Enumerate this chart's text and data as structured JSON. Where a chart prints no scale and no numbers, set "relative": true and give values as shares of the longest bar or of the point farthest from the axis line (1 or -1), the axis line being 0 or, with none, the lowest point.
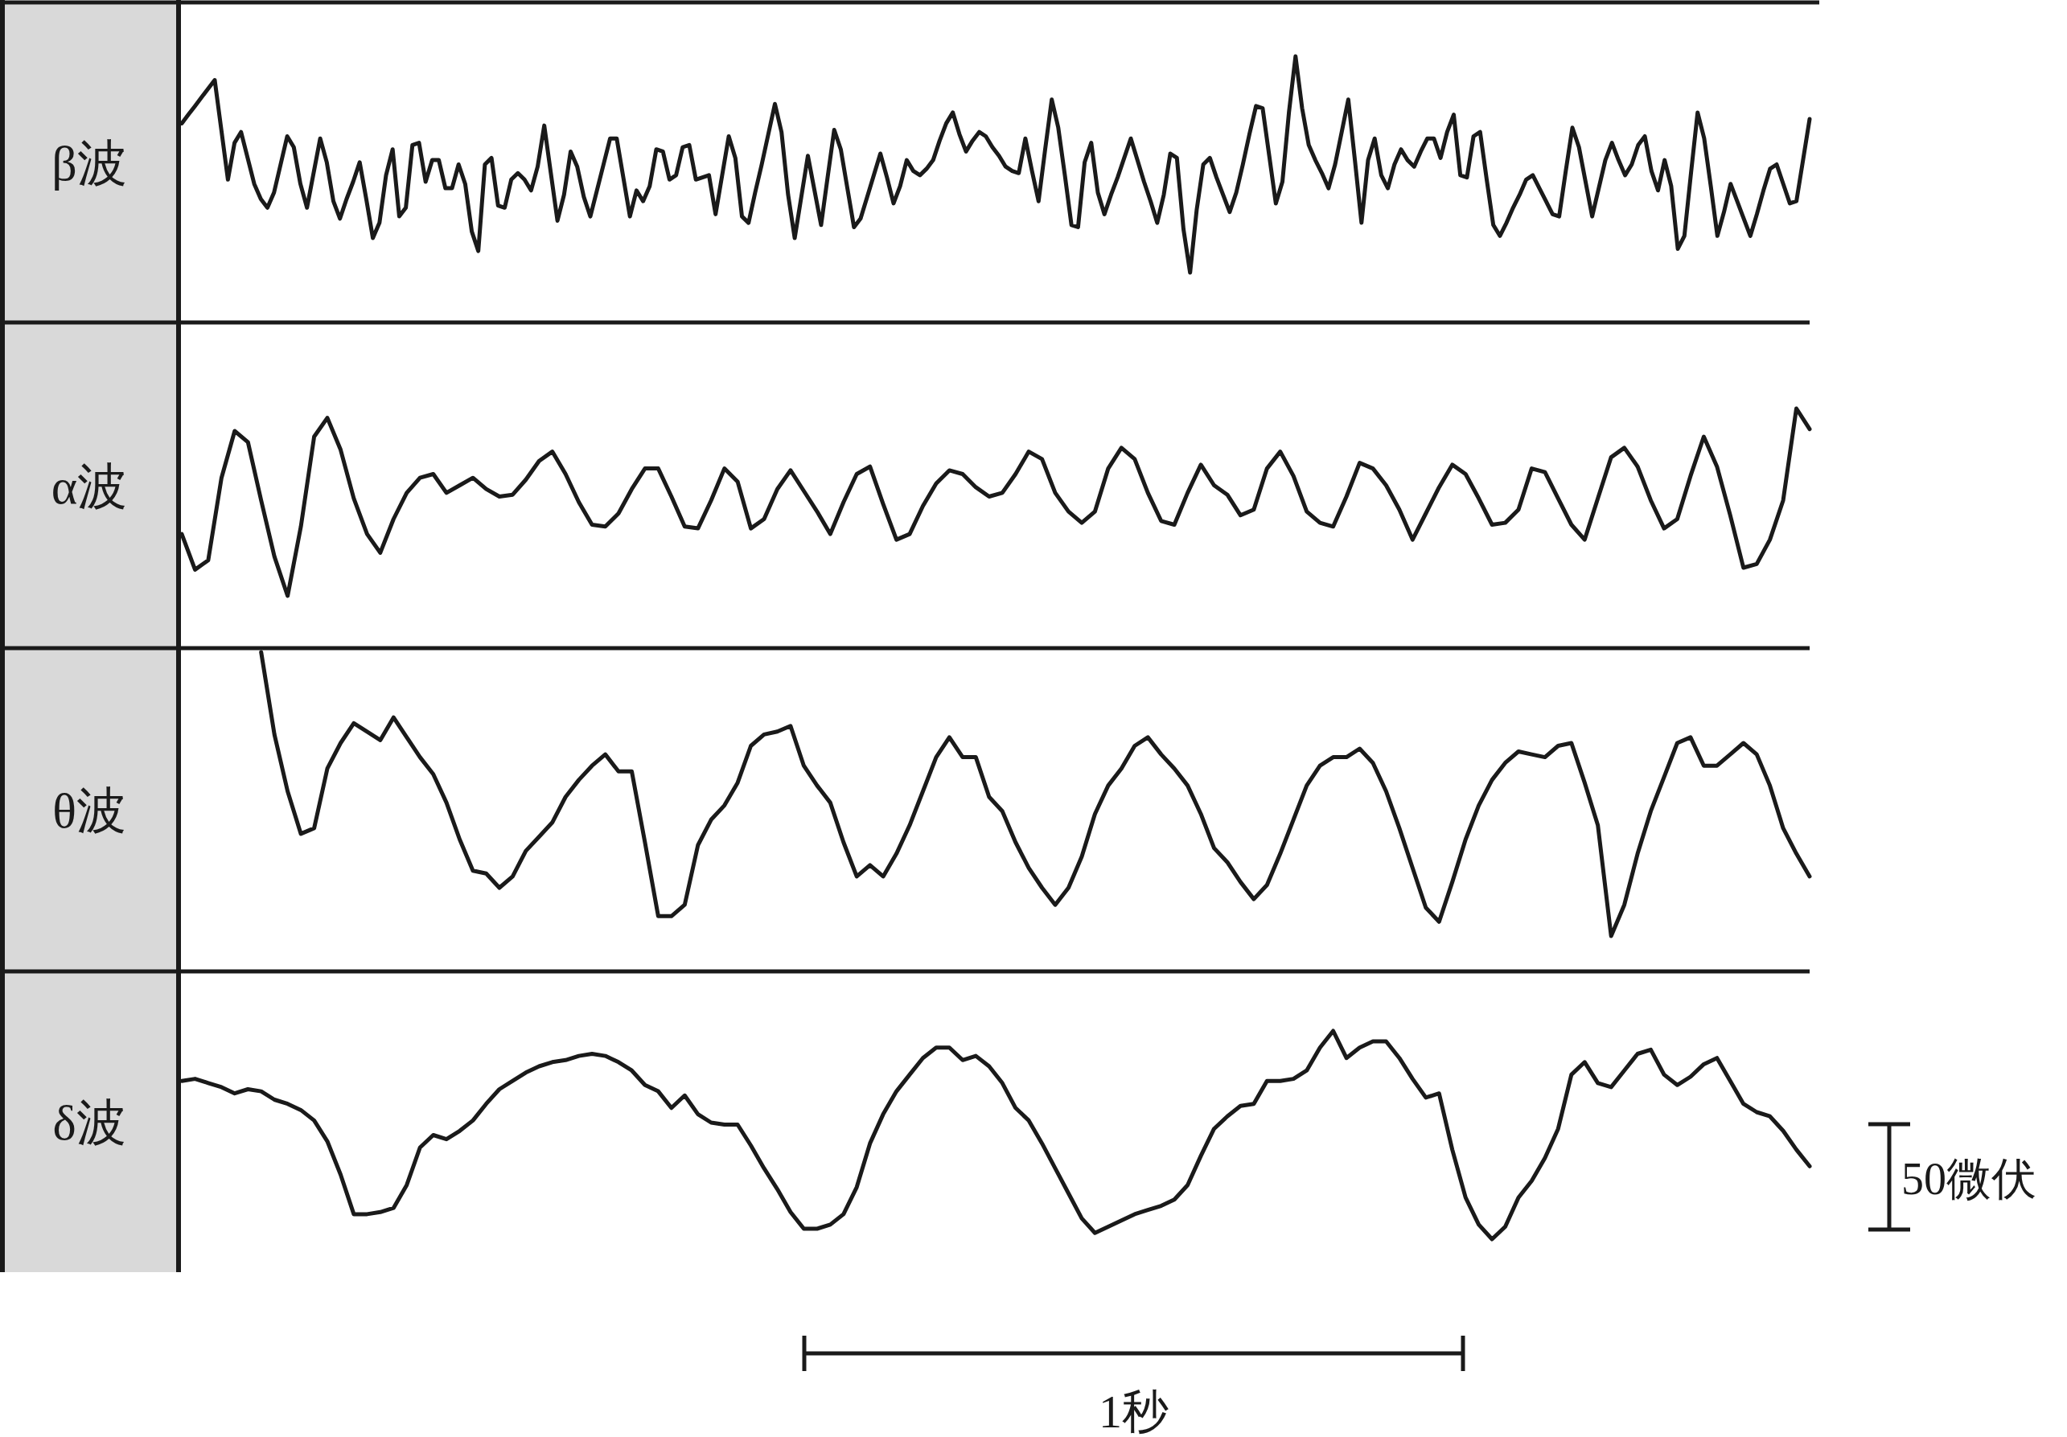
{
  "chart_data": [
    {
      "type": "line",
      "title": "β波",
      "relative": true,
      "color": "#1a1a1a",
      "categories": [
        null,
        null,
        null,
        null,
        null,
        null,
        null,
        null,
        null,
        null,
        null,
        null,
        null,
        null,
        null,
        null,
        null,
        null,
        null,
        null,
        null,
        null,
        null,
        null,
        null,
        null,
        null,
        null,
        null,
        null,
        null,
        null,
        null,
        null,
        null,
        null,
        null,
        null,
        null,
        null,
        null,
        null,
        null,
        null,
        null,
        null,
        null,
        null,
        null,
        null,
        null,
        null,
        null,
        null,
        null,
        null,
        null,
        null,
        null,
        null,
        null,
        null,
        null,
        null,
        null,
        null,
        null,
        null,
        null,
        null,
        null,
        null,
        null,
        null,
        null,
        null,
        null,
        null,
        null,
        null,
        null,
        null,
        null,
        null,
        null,
        null,
        null,
        null,
        null,
        null,
        null,
        null,
        null,
        null,
        null,
        null,
        null,
        null,
        null,
        null,
        null,
        null,
        null,
        null,
        null,
        null,
        null,
        null,
        null,
        null,
        null,
        null,
        null,
        null,
        null,
        null,
        null,
        null,
        null,
        null,
        null,
        null,
        null,
        null,
        null,
        null,
        null,
        null,
        null,
        null,
        null,
        null,
        null,
        null,
        null,
        null,
        null,
        null,
        null,
        null,
        null,
        null,
        null,
        null,
        null,
        null,
        null,
        null,
        null,
        null,
        null,
        null,
        null,
        null,
        null,
        null,
        null,
        null,
        null,
        null,
        null,
        null,
        null,
        null,
        null,
        null,
        null,
        null,
        null,
        null,
        null,
        null,
        null,
        null,
        null,
        null,
        null,
        null,
        null,
        null,
        null,
        null,
        null,
        null,
        null,
        null,
        null,
        null,
        null,
        null,
        null,
        null,
        null,
        null,
        null,
        null,
        null,
        null,
        null,
        null,
        null,
        null,
        null,
        null,
        null,
        null,
        null,
        null,
        null,
        null,
        null,
        null,
        null,
        null,
        null,
        null,
        null,
        null,
        null,
        null,
        null,
        null,
        null,
        null,
        null,
        null,
        null,
        null,
        null,
        null,
        null,
        null,
        null,
        null,
        null,
        null,
        null,
        null,
        null,
        null,
        null,
        null,
        null,
        null,
        null,
        null,
        null,
        null
      ],
      "values": [
        0.69,
        0.73,
        0.77,
        0.81,
        0.85,
        0.89,
        0.66,
        0.43,
        0.6,
        0.65,
        0.53,
        0.41,
        0.34,
        0.3,
        0.37,
        0.5,
        0.63,
        0.58,
        0.41,
        0.3,
        0.46,
        0.62,
        0.51,
        0.33,
        0.25,
        0.34,
        0.42,
        0.51,
        0.34,
        0.16,
        0.23,
        0.45,
        0.57,
        0.26,
        0.3,
        0.59,
        0.6,
        0.42,
        0.52,
        0.52,
        0.39,
        0.39,
        0.5,
        0.41,
        0.19,
        0.1,
        0.5,
        0.53,
        0.31,
        0.3,
        0.43,
        0.46,
        0.43,
        0.38,
        0.49,
        0.68,
        0.46,
        0.24,
        0.36,
        0.56,
        0.49,
        0.35,
        0.26,
        0.38,
        0.5,
        0.62,
        0.62,
        0.44,
        0.26,
        0.38,
        0.33,
        0.4,
        0.57,
        0.56,
        0.43,
        0.45,
        0.58,
        0.59,
        0.43,
        0.44,
        0.45,
        0.27,
        0.45,
        0.63,
        0.53,
        0.26,
        0.23,
        0.37,
        0.5,
        0.64,
        0.78,
        0.65,
        0.36,
        0.16,
        0.35,
        0.54,
        0.38,
        0.22,
        0.44,
        0.66,
        0.57,
        0.39,
        0.21,
        0.25,
        0.35,
        0.45,
        0.55,
        0.44,
        0.32,
        0.4,
        0.52,
        0.47,
        0.45,
        0.48,
        0.52,
        0.61,
        0.69,
        0.74,
        0.64,
        0.56,
        0.61,
        0.65,
        0.63,
        0.58,
        0.54,
        0.49,
        0.47,
        0.46,
        0.62,
        0.47,
        0.33,
        0.57,
        0.8,
        0.67,
        0.45,
        0.22,
        0.21,
        0.51,
        0.6,
        0.37,
        0.27,
        0.36,
        0.44,
        0.53,
        0.62,
        0.52,
        0.42,
        0.33,
        0.23,
        0.36,
        0.55,
        0.53,
        0.2,
        0,
        0.29,
        0.5,
        0.53,
        0.44,
        0.36,
        0.28,
        0.37,
        0.5,
        0.64,
        0.77,
        0.76,
        0.54,
        0.32,
        0.42,
        0.74,
        1,
        0.76,
        0.59,
        0.52,
        0.46,
        0.39,
        0.5,
        0.65,
        0.8,
        0.52,
        0.23,
        0.52,
        0.62,
        0.45,
        0.39,
        0.5,
        0.57,
        0.52,
        0.49,
        0.56,
        0.62,
        0.62,
        0.53,
        0.65,
        0.73,
        0.45,
        0.44,
        0.63,
        0.65,
        0.43,
        0.22,
        0.17,
        0.23,
        0.3,
        0.36,
        0.43,
        0.45,
        0.39,
        0.33,
        0.27,
        0.26,
        0.47,
        0.67,
        0.58,
        0.42,
        0.26,
        0.39,
        0.52,
        0.6,
        0.52,
        0.45,
        0.5,
        0.59,
        0.63,
        0.47,
        0.38,
        0.52,
        0.4,
        0.11,
        0.17,
        0.46,
        0.74,
        0.62,
        0.4,
        0.17,
        0.28,
        0.41,
        0.33,
        0.25,
        0.17,
        0.27,
        0.38,
        0.48,
        0.5,
        0.41,
        0.32,
        0.33,
        0.52,
        0.71
      ]
    },
    {
      "type": "line",
      "title": "α波",
      "relative": true,
      "color": "#1a1a1a",
      "categories": [
        null,
        null,
        null,
        null,
        null,
        null,
        null,
        null,
        null,
        null,
        null,
        null,
        null,
        null,
        null,
        null,
        null,
        null,
        null,
        null,
        null,
        null,
        null,
        null,
        null,
        null,
        null,
        null,
        null,
        null,
        null,
        null,
        null,
        null,
        null,
        null,
        null,
        null,
        null,
        null,
        null,
        null,
        null,
        null,
        null,
        null,
        null,
        null,
        null,
        null,
        null,
        null,
        null,
        null,
        null,
        null,
        null,
        null,
        null,
        null,
        null,
        null,
        null,
        null,
        null,
        null,
        null,
        null,
        null,
        null,
        null,
        null,
        null,
        null,
        null,
        null,
        null,
        null,
        null,
        null,
        null,
        null,
        null,
        null,
        null,
        null,
        null,
        null,
        null,
        null,
        null,
        null,
        null,
        null,
        null,
        null,
        null,
        null,
        null,
        null,
        null,
        null,
        null,
        null,
        null,
        null,
        null,
        null,
        null,
        null,
        null,
        null,
        null,
        null,
        null,
        null,
        null,
        null,
        null,
        null,
        null,
        null,
        null,
        null
      ],
      "values": [
        0.33,
        0.14,
        0.19,
        0.63,
        0.88,
        0.82,
        0.51,
        0.21,
        0,
        0.37,
        0.85,
        0.95,
        0.78,
        0.52,
        0.33,
        0.23,
        0.41,
        0.55,
        0.63,
        0.65,
        0.55,
        0.59,
        0.63,
        0.57,
        0.53,
        0.54,
        0.62,
        0.72,
        0.77,
        0.65,
        0.5,
        0.38,
        0.37,
        0.44,
        0.57,
        0.68,
        0.68,
        0.53,
        0.37,
        0.36,
        0.51,
        0.68,
        0.61,
        0.36,
        0.41,
        0.57,
        0.67,
        0.56,
        0.45,
        0.33,
        0.5,
        0.65,
        0.69,
        0.49,
        0.3,
        0.33,
        0.48,
        0.6,
        0.67,
        0.65,
        0.58,
        0.53,
        0.55,
        0.65,
        0.77,
        0.73,
        0.55,
        0.45,
        0.39,
        0.45,
        0.68,
        0.79,
        0.73,
        0.55,
        0.4,
        0.38,
        0.55,
        0.7,
        0.59,
        0.54,
        0.43,
        0.46,
        0.68,
        0.77,
        0.64,
        0.45,
        0.39,
        0.37,
        0.53,
        0.71,
        0.68,
        0.59,
        0.46,
        0.3,
        0.44,
        0.58,
        0.7,
        0.65,
        0.52,
        0.38,
        0.39,
        0.46,
        0.68,
        0.66,
        0.52,
        0.38,
        0.3,
        0.52,
        0.74,
        0.79,
        0.69,
        0.51,
        0.36,
        0.41,
        0.64,
        0.85,
        0.69,
        0.43,
        0.15,
        0.17,
        0.3,
        0.51,
        1,
        0.89
      ]
    },
    {
      "type": "line",
      "title": "θ波",
      "relative": true,
      "color": "#1a1a1a",
      "categories": [
        null,
        null,
        null,
        null,
        null,
        null,
        null,
        null,
        null,
        null,
        null,
        null,
        null,
        null,
        null,
        null,
        null,
        null,
        null,
        null,
        null,
        null,
        null,
        null,
        null,
        null,
        null,
        null,
        null,
        null,
        null,
        null,
        null,
        null,
        null,
        null,
        null,
        null,
        null,
        null,
        null,
        null,
        null,
        null,
        null,
        null,
        null,
        null,
        null,
        null,
        null,
        null,
        null,
        null,
        null,
        null,
        null,
        null,
        null,
        null,
        null,
        null,
        null,
        null,
        null,
        null,
        null,
        null,
        null,
        null,
        null,
        null,
        null,
        null,
        null,
        null,
        null,
        null,
        null,
        null,
        null,
        null,
        null,
        null,
        null,
        null,
        null,
        null,
        null,
        null,
        null,
        null,
        null,
        null,
        null,
        null,
        null,
        null,
        null,
        null,
        null,
        null,
        null,
        null,
        null,
        null,
        null,
        null,
        null,
        null,
        null,
        null,
        null,
        null,
        null,
        null,
        null,
        null,
        null,
        null,
        null,
        null,
        null,
        null
      ],
      "values": [
        null,
        null,
        null,
        null,
        null,
        null,
        1,
        0.71,
        0.51,
        0.36,
        0.38,
        0.59,
        0.68,
        0.75,
        0.72,
        0.69,
        0.77,
        0.7,
        0.63,
        0.57,
        0.47,
        0.34,
        0.23,
        0.22,
        0.17,
        0.21,
        0.3,
        0.35,
        0.4,
        0.49,
        0.55,
        0.6,
        0.64,
        0.58,
        0.58,
        0.33,
        0.07,
        0.07,
        0.11,
        0.32,
        0.41,
        0.46,
        0.54,
        0.67,
        0.71,
        0.72,
        0.74,
        0.6,
        0.53,
        0.47,
        0.33,
        0.21,
        0.25,
        0.21,
        0.29,
        0.39,
        0.51,
        0.63,
        0.7,
        0.63,
        0.63,
        0.49,
        0.44,
        0.33,
        0.24,
        0.17,
        0.11,
        0.17,
        0.28,
        0.43,
        0.53,
        0.59,
        0.67,
        0.7,
        0.64,
        0.59,
        0.53,
        0.43,
        0.31,
        0.26,
        0.19,
        0.13,
        0.18,
        0.29,
        0.41,
        0.53,
        0.6,
        0.63,
        0.63,
        0.66,
        0.61,
        0.51,
        0.38,
        0.24,
        0.1,
        0.05,
        0.19,
        0.34,
        0.46,
        0.55,
        0.61,
        0.65,
        0.64,
        0.63,
        0.67,
        0.68,
        0.54,
        0.39,
        0,
        0.11,
        0.29,
        0.44,
        0.56,
        0.68,
        0.7,
        0.6,
        0.6,
        0.64,
        0.68,
        0.64,
        0.53,
        0.38,
        0.29,
        0.21
      ]
    },
    {
      "type": "line",
      "title": "δ波",
      "relative": true,
      "color": "#1a1a1a",
      "annotations": [
        "1秒",
        "50微伏"
      ],
      "categories": [
        null,
        null,
        null,
        null,
        null,
        null,
        null,
        null,
        null,
        null,
        null,
        null,
        null,
        null,
        null,
        null,
        null,
        null,
        null,
        null,
        null,
        null,
        null,
        null,
        null,
        null,
        null,
        null,
        null,
        null,
        null,
        null,
        null,
        null,
        null,
        null,
        null,
        null,
        null,
        null,
        null,
        null,
        null,
        null,
        null,
        null,
        null,
        null,
        null,
        null,
        null,
        null,
        null,
        null,
        null,
        null,
        null,
        null,
        null,
        null,
        null,
        null,
        null,
        null,
        null,
        null,
        null,
        null,
        null,
        null,
        null,
        null,
        null,
        null,
        null,
        null,
        null,
        null,
        null,
        null,
        null,
        null,
        null,
        null,
        null,
        null,
        null,
        null,
        null,
        null,
        null,
        null,
        null,
        null,
        null,
        null,
        null,
        null,
        null,
        null,
        null,
        null,
        null,
        null,
        null,
        null,
        null,
        null,
        null,
        null,
        null,
        null,
        null,
        null,
        null,
        null,
        null,
        null,
        null,
        null,
        null,
        null,
        null,
        null
      ],
      "values": [
        0.76,
        0.77,
        0.75,
        0.73,
        0.7,
        0.72,
        0.71,
        0.67,
        0.65,
        0.62,
        0.57,
        0.47,
        0.31,
        0.12,
        0.12,
        0.13,
        0.15,
        0.26,
        0.44,
        0.5,
        0.48,
        0.52,
        0.57,
        0.65,
        0.72,
        0.76,
        0.8,
        0.83,
        0.85,
        0.86,
        0.88,
        0.89,
        0.88,
        0.85,
        0.81,
        0.74,
        0.71,
        0.63,
        0.69,
        0.6,
        0.56,
        0.55,
        0.55,
        0.45,
        0.34,
        0.24,
        0.13,
        0.05,
        0.05,
        0.07,
        0.12,
        0.25,
        0.46,
        0.6,
        0.71,
        0.79,
        0.87,
        0.92,
        0.92,
        0.86,
        0.88,
        0.83,
        0.75,
        0.63,
        0.57,
        0.46,
        0.34,
        0.22,
        0.1,
        0.03,
        0.06,
        0.09,
        0.12,
        0.14,
        0.16,
        0.19,
        0.26,
        0.4,
        0.53,
        0.59,
        0.64,
        0.65,
        0.76,
        0.76,
        0.77,
        0.81,
        0.92,
        1,
        0.87,
        0.92,
        0.95,
        0.95,
        0.87,
        0.77,
        0.68,
        0.7,
        0.43,
        0.2,
        0.07,
        0,
        0.06,
        0.2,
        0.28,
        0.39,
        0.53,
        0.79,
        0.85,
        0.75,
        0.73,
        0.81,
        0.89,
        0.91,
        0.79,
        0.74,
        0.78,
        0.84,
        0.87,
        0.76,
        0.65,
        0.61,
        0.59,
        0.52,
        0.43,
        0.35
      ]
    }
  ]
}
